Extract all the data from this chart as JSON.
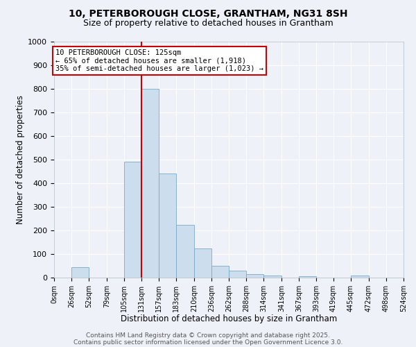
{
  "title_line1": "10, PETERBOROUGH CLOSE, GRANTHAM, NG31 8SH",
  "title_line2": "Size of property relative to detached houses in Grantham",
  "xlabel": "Distribution of detached houses by size in Grantham",
  "ylabel": "Number of detached properties",
  "bin_edges": [
    0,
    26,
    52,
    79,
    105,
    131,
    157,
    183,
    210,
    236,
    262,
    288,
    314,
    341,
    367,
    393,
    419,
    445,
    472,
    498,
    524
  ],
  "bar_heights": [
    0,
    45,
    0,
    0,
    490,
    800,
    440,
    225,
    125,
    50,
    28,
    14,
    10,
    0,
    5,
    0,
    0,
    8,
    0,
    0
  ],
  "bar_color": "#ccdded",
  "bar_edge_color": "#7aaac8",
  "vline_x": 131,
  "vline_color": "#cc0000",
  "annotation_text": "10 PETERBOROUGH CLOSE: 125sqm\n← 65% of detached houses are smaller (1,918)\n35% of semi-detached houses are larger (1,023) →",
  "annotation_box_edgecolor": "#cc0000",
  "annotation_fontsize": 7.5,
  "ylim": [
    0,
    1000
  ],
  "yticks": [
    0,
    100,
    200,
    300,
    400,
    500,
    600,
    700,
    800,
    900,
    1000
  ],
  "bg_color": "#eef2f8",
  "plot_bg_color": "#eef2f8",
  "grid_color": "#ffffff",
  "title_fontsize": 10,
  "subtitle_fontsize": 9,
  "tick_label_fontsize": 7,
  "xlabel_fontsize": 8.5,
  "ylabel_fontsize": 8.5,
  "footer_line1": "Contains HM Land Registry data © Crown copyright and database right 2025.",
  "footer_line2": "Contains public sector information licensed under the Open Government Licence 3.0.",
  "footer_fontsize": 6.5
}
